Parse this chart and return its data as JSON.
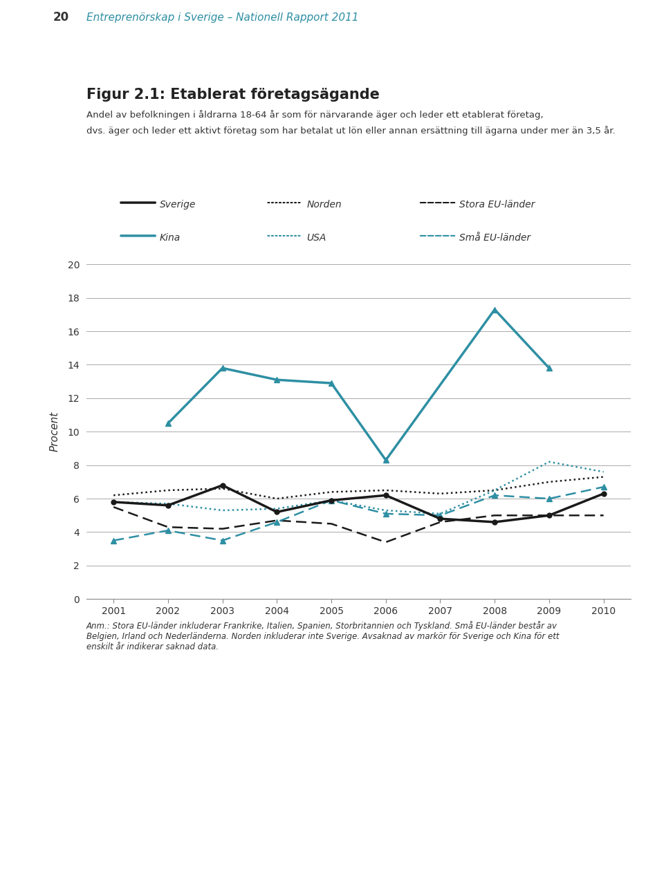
{
  "years": [
    2001,
    2002,
    2003,
    2004,
    2005,
    2006,
    2007,
    2008,
    2009,
    2010
  ],
  "sverige": [
    5.8,
    5.6,
    6.8,
    5.2,
    5.9,
    6.2,
    4.8,
    4.6,
    5.0,
    6.3
  ],
  "norden": [
    6.2,
    6.5,
    6.6,
    6.0,
    6.4,
    6.5,
    6.3,
    6.5,
    7.0,
    7.3
  ],
  "stora_eu": [
    5.5,
    4.3,
    4.2,
    4.7,
    4.5,
    3.4,
    4.6,
    5.0,
    5.0,
    5.0
  ],
  "kina": [
    null,
    10.5,
    13.8,
    13.1,
    12.9,
    8.3,
    null,
    17.3,
    13.8,
    null
  ],
  "usa": [
    5.8,
    5.7,
    5.3,
    5.4,
    5.9,
    5.3,
    5.1,
    6.5,
    8.2,
    7.6
  ],
  "sma_eu": [
    3.5,
    4.1,
    3.5,
    4.6,
    5.9,
    5.1,
    5.0,
    6.2,
    6.0,
    6.7
  ],
  "color_black": "#1a1a1a",
  "color_teal": "#2e8fa3",
  "ylim": [
    0,
    20
  ],
  "yticks": [
    0,
    2,
    4,
    6,
    8,
    10,
    12,
    14,
    16,
    18,
    20
  ],
  "ylabel": "Procent",
  "header_line1": "Entreprenörskap i Sverige – Nationell Rapport 2011",
  "figure_title": "Figur 2.1: Etablerat företagsägande",
  "subtitle_line1": "Andel av befolkningen i åldrarna 18-64 år som för närvarande äger och leder ett etablerat företag,",
  "subtitle_line2": "dvs. äger och leder ett aktivt företag som har betalat ut lön eller annan ersättning till ägarna under mer än 3,5 år.",
  "anm_text": "Anm.: Stora EU-länder inkluderar Frankrike, Italien, Spanien, Storbritannien och Tyskland. Små EU-länder består av\nBelgien, Irland och Nederländerna. Norden inkluderar inte Sverige. Avsaknad av markör för Sverige och Kina för ett\nenskilt år indikerar saknad data.",
  "page_number": "20",
  "background_color": "#e8f0f4",
  "plot_bg": "#ffffff",
  "legend_bg": "#dde8ee"
}
